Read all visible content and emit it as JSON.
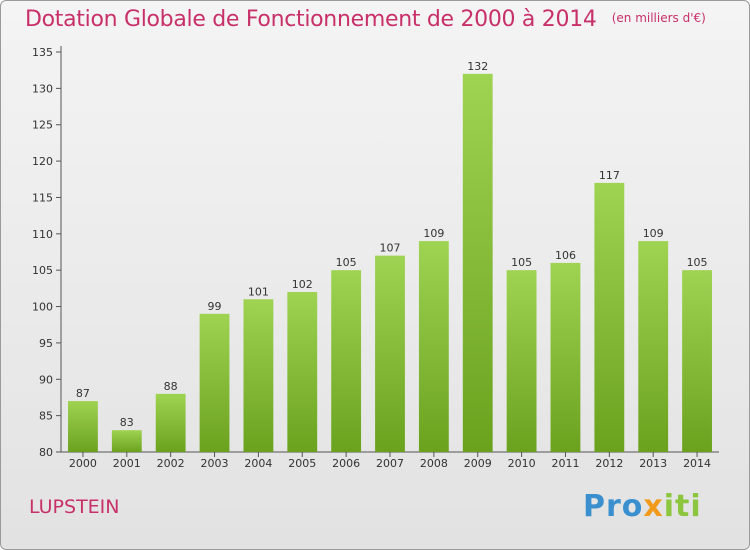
{
  "chart_data": {
    "type": "bar",
    "title": "Dotation Globale de Fonctionnement de 2000 à 2014",
    "unit": "(en milliers d'€)",
    "categories": [
      "2000",
      "2001",
      "2002",
      "2003",
      "2004",
      "2005",
      "2006",
      "2007",
      "2008",
      "2009",
      "2010",
      "2011",
      "2012",
      "2013",
      "2014"
    ],
    "values": [
      87,
      83,
      88,
      99,
      101,
      102,
      105,
      107,
      109,
      132,
      105,
      106,
      117,
      109,
      105
    ],
    "ylim": [
      80,
      135
    ],
    "yticks": [
      80,
      85,
      90,
      95,
      100,
      105,
      110,
      115,
      120,
      125,
      130,
      135
    ],
    "grid": false,
    "bar_color": "#8cc63e",
    "xlabel": "",
    "ylabel": ""
  },
  "footer": {
    "location": "LUPSTEIN",
    "brand_parts": [
      "Pro",
      "x",
      "iti"
    ]
  }
}
